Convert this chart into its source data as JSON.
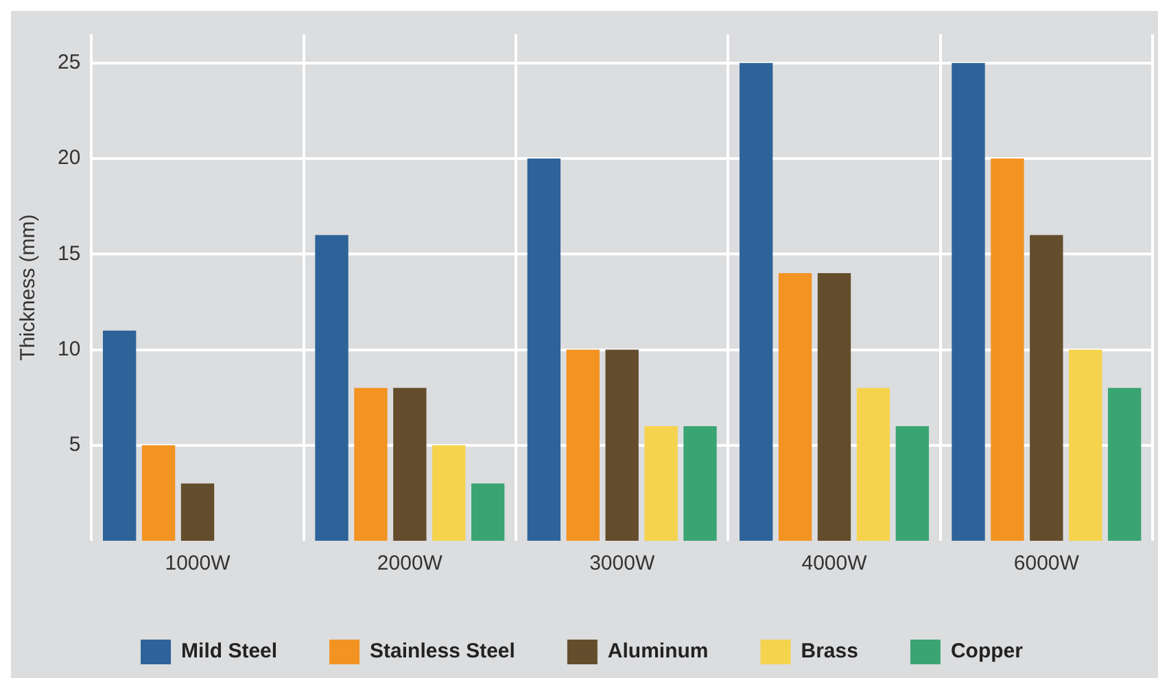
{
  "chart_data": {
    "type": "bar",
    "ylabel": "Thickness (mm)",
    "categories": [
      "1000W",
      "2000W",
      "3000W",
      "4000W",
      "6000W"
    ],
    "series": [
      {
        "name": "Mild Steel",
        "color": "#2e6399",
        "values": [
          11,
          16,
          20,
          25,
          25
        ]
      },
      {
        "name": "Stainless Steel",
        "color": "#f39322",
        "values": [
          5,
          8,
          10,
          14,
          20
        ]
      },
      {
        "name": "Aluminum",
        "color": "#634d2c",
        "values": [
          3,
          8,
          10,
          14,
          16
        ]
      },
      {
        "name": "Brass",
        "color": "#f5d34d",
        "values": [
          null,
          5,
          6,
          8,
          10
        ]
      },
      {
        "name": "Copper",
        "color": "#3aa572",
        "values": [
          null,
          3,
          6,
          6,
          8
        ]
      }
    ],
    "ylim": [
      0,
      26.5
    ],
    "yticks": [
      5,
      10,
      15,
      20,
      25
    ],
    "grid": true,
    "legend": "bottom"
  }
}
